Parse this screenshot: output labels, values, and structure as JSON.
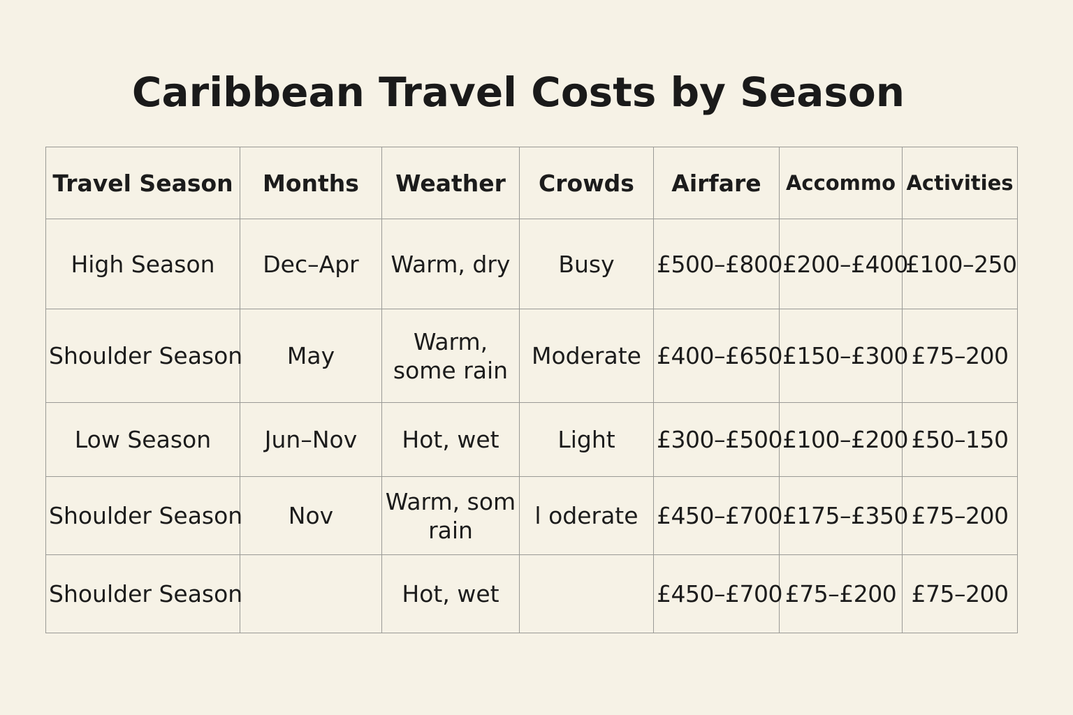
{
  "chart_data": {
    "type": "table",
    "title": "Caribbean Travel Costs by Season",
    "columns": [
      "Travel Season",
      "Months",
      "Weather",
      "Crowds",
      "Airfare",
      "Accommo",
      "Activities"
    ],
    "rows": [
      [
        "High Season",
        "Dec–Apr",
        "Warm, dry",
        "Busy",
        "£500–£800",
        "£200–£400",
        "£100–250"
      ],
      [
        "Shoulder Season",
        "May",
        "Warm, some rain",
        "Moderate",
        "£400–£650",
        "£150–£300",
        "£75–200"
      ],
      [
        "Low Season",
        "Jun–Nov",
        "Hot, wet",
        "Light",
        "£300–£500",
        "£100–£200",
        "£50–150"
      ],
      [
        "Shoulder Season",
        "Nov",
        "Warm, som rain",
        "l  oderate",
        "£450–£700",
        "£175–£350",
        "£75–200"
      ],
      [
        "Shoulder Season",
        "",
        "Hot, wet",
        "",
        "£450–£700",
        "£75–£200",
        "£75–200"
      ]
    ],
    "colors": {
      "background": "#f6f2e6",
      "grid": "#9a9a96",
      "text": "#1c1c1c"
    }
  }
}
